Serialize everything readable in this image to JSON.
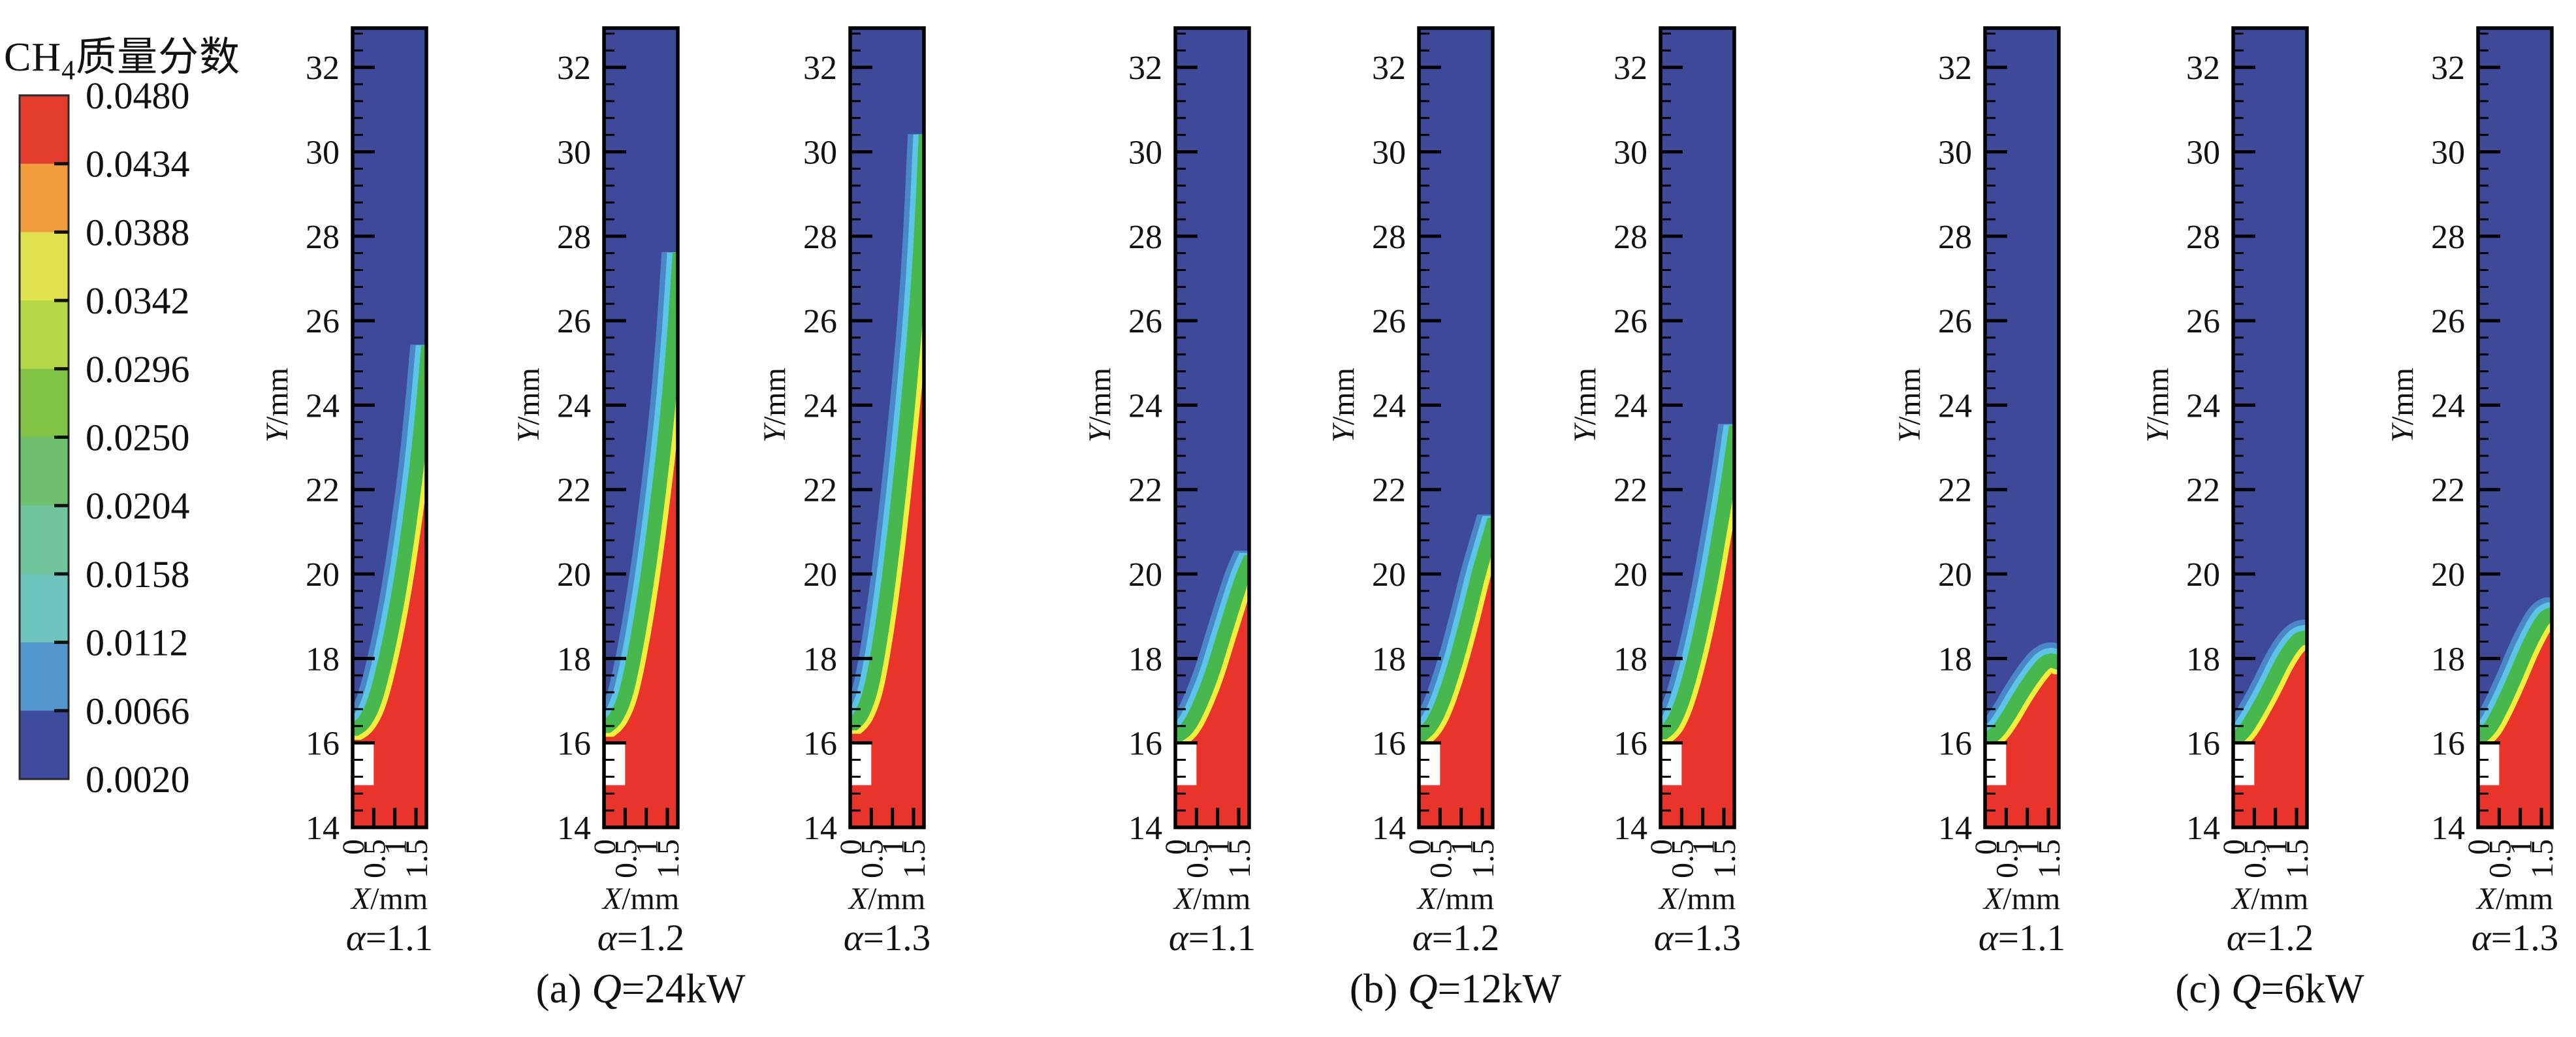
{
  "legend": {
    "title_prefix": "CH",
    "title_sub": "4",
    "title_suffix": "质量分数",
    "levels": [
      "0.0480",
      "0.0434",
      "0.0388",
      "0.0342",
      "0.0296",
      "0.0250",
      "0.0204",
      "0.0158",
      "0.0112",
      "0.0066",
      "0.0020"
    ],
    "band_colors_top_to_bottom": [
      "#e23d2d",
      "#f09c3c",
      "#dfe14e",
      "#b5d748",
      "#80c244",
      "#6dc06e",
      "#72c49c",
      "#6cc4bd",
      "#5496ce",
      "#3f4b9c"
    ]
  },
  "axes": {
    "y_var": "Y",
    "y_unit": "/mm",
    "x_var": "X",
    "x_unit": "/mm",
    "y_tick_labels": [
      "32",
      "30",
      "28",
      "26",
      "24",
      "22",
      "20",
      "18",
      "16",
      "14"
    ],
    "y_tick_values": [
      32,
      30,
      28,
      26,
      24,
      22,
      20,
      18,
      16,
      14
    ],
    "x_tick_labels": [
      "0",
      "0.5",
      "1",
      "1.5"
    ],
    "x_tick_values": [
      0,
      0.5,
      1,
      1.5
    ]
  },
  "groups": [
    {
      "caption_prefix": "(a) ",
      "caption_var": "Q",
      "caption_value": "=24kW",
      "alphas": [
        "α=1.1",
        "α=1.2",
        "α=1.3"
      ]
    },
    {
      "caption_prefix": "(b) ",
      "caption_var": "Q",
      "caption_value": "=12kW",
      "alphas": [
        "α=1.1",
        "α=1.2",
        "α=1.3"
      ]
    },
    {
      "caption_prefix": "(c) ",
      "caption_var": "Q",
      "caption_value": "=6kW",
      "alphas": [
        "α=1.1",
        "α=1.2",
        "α=1.3"
      ]
    }
  ],
  "colors": {
    "background": "#ffffff",
    "frame": "#000000",
    "field_blue": "#3e4a99",
    "band_lightblue": "#4a86c8",
    "band_cyan": "#5cc4e6",
    "band_green": "#46b84e",
    "band_yellow": "#f2ee3c",
    "field_red": "#e8342a",
    "notch_white": "#ffffff"
  },
  "chart_data": {
    "type": "heatmap",
    "title": "CH4质量分数 (CH4 mass fraction) contour panels vs burner load Q and excess-air ratio α",
    "legend_position": "left",
    "colorbar_levels": [
      0.048,
      0.0434,
      0.0388,
      0.0342,
      0.0296,
      0.025,
      0.0204,
      0.0158,
      0.0112,
      0.0066,
      0.002
    ],
    "xlabel": "X/mm",
    "ylabel": "Y/mm",
    "x_range_mm": [
      0,
      1.75
    ],
    "y_range_mm": [
      14,
      32.93
    ],
    "burner_notch_mm": {
      "x": [
        0,
        0.5
      ],
      "y": [
        15,
        16
      ]
    },
    "panels": [
      {
        "group": "a",
        "Q_kW": 24,
        "alpha": 1.1,
        "tip_height_mm": 25.6,
        "front": [
          [
            0,
            16.35
          ],
          [
            0.25,
            16.55
          ],
          [
            0.5,
            17.1
          ],
          [
            0.8,
            18.3
          ],
          [
            1.1,
            19.9
          ],
          [
            1.4,
            22.0
          ],
          [
            1.6,
            23.8
          ],
          [
            1.744,
            25.4
          ]
        ]
      },
      {
        "group": "a",
        "Q_kW": 24,
        "alpha": 1.2,
        "tip_height_mm": 27.8,
        "front": [
          [
            0,
            16.4
          ],
          [
            0.25,
            16.65
          ],
          [
            0.5,
            17.3
          ],
          [
            0.8,
            18.8
          ],
          [
            1.1,
            20.8
          ],
          [
            1.4,
            23.3
          ],
          [
            1.6,
            25.5
          ],
          [
            1.744,
            27.6
          ]
        ]
      },
      {
        "group": "a",
        "Q_kW": 24,
        "alpha": 1.3,
        "tip_height_mm": 30.6,
        "front": [
          [
            0,
            16.45
          ],
          [
            0.25,
            16.75
          ],
          [
            0.5,
            17.55
          ],
          [
            0.8,
            19.4
          ],
          [
            1.1,
            21.9
          ],
          [
            1.4,
            24.9
          ],
          [
            1.6,
            27.5
          ],
          [
            1.744,
            30.4
          ]
        ]
      },
      {
        "group": "b",
        "Q_kW": 12,
        "alpha": 1.1,
        "tip_height_mm": 20.6,
        "front": [
          [
            0,
            16.2
          ],
          [
            0.25,
            16.4
          ],
          [
            0.5,
            16.85
          ],
          [
            0.8,
            17.6
          ],
          [
            1.1,
            18.55
          ],
          [
            1.35,
            19.35
          ],
          [
            1.55,
            19.95
          ],
          [
            1.744,
            20.4
          ]
        ]
      },
      {
        "group": "b",
        "Q_kW": 12,
        "alpha": 1.2,
        "tip_height_mm": 21.5,
        "front": [
          [
            0,
            16.2
          ],
          [
            0.25,
            16.45
          ],
          [
            0.5,
            16.95
          ],
          [
            0.8,
            17.85
          ],
          [
            1.1,
            18.95
          ],
          [
            1.35,
            19.95
          ],
          [
            1.55,
            20.65
          ],
          [
            1.744,
            21.3
          ]
        ]
      },
      {
        "group": "b",
        "Q_kW": 12,
        "alpha": 1.3,
        "tip_height_mm": 23.7,
        "front": [
          [
            0,
            16.25
          ],
          [
            0.25,
            16.5
          ],
          [
            0.5,
            17.1
          ],
          [
            0.8,
            18.2
          ],
          [
            1.1,
            19.6
          ],
          [
            1.35,
            21.0
          ],
          [
            1.55,
            22.2
          ],
          [
            1.744,
            23.5
          ]
        ]
      },
      {
        "group": "c",
        "Q_kW": 6,
        "alpha": 1.1,
        "tip_height_mm": 18.1,
        "front": [
          [
            0,
            16.1
          ],
          [
            0.25,
            16.3
          ],
          [
            0.5,
            16.65
          ],
          [
            0.8,
            17.15
          ],
          [
            1.1,
            17.6
          ],
          [
            1.35,
            17.9
          ],
          [
            1.55,
            18.0
          ],
          [
            1.744,
            17.95
          ]
        ]
      },
      {
        "group": "c",
        "Q_kW": 6,
        "alpha": 1.2,
        "tip_height_mm": 18.65,
        "front": [
          [
            0,
            16.1
          ],
          [
            0.25,
            16.35
          ],
          [
            0.5,
            16.75
          ],
          [
            0.8,
            17.3
          ],
          [
            1.1,
            17.9
          ],
          [
            1.35,
            18.3
          ],
          [
            1.55,
            18.5
          ],
          [
            1.744,
            18.55
          ]
        ]
      },
      {
        "group": "c",
        "Q_kW": 6,
        "alpha": 1.3,
        "tip_height_mm": 19.3,
        "front": [
          [
            0,
            16.15
          ],
          [
            0.25,
            16.4
          ],
          [
            0.5,
            16.85
          ],
          [
            0.8,
            17.5
          ],
          [
            1.1,
            18.2
          ],
          [
            1.35,
            18.7
          ],
          [
            1.55,
            19.0
          ],
          [
            1.744,
            19.1
          ]
        ]
      }
    ]
  }
}
